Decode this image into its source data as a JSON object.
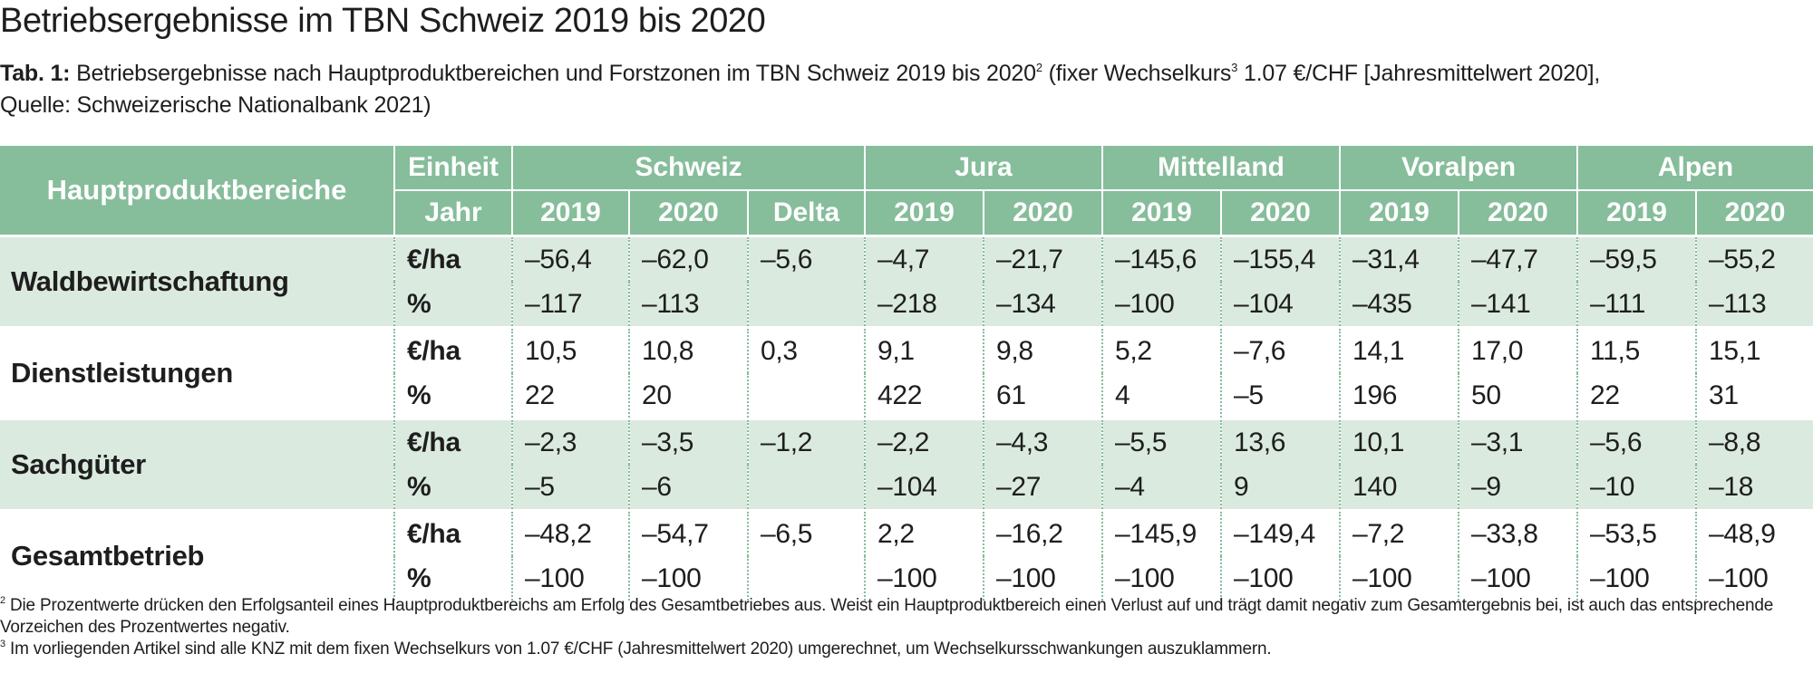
{
  "title": "Betriebsergebnisse im TBN Schweiz 2019 bis 2020",
  "caption": {
    "label": "Tab. 1:",
    "text_part1": "Betriebsergebnisse nach Hauptproduktbereichen und Forstzonen im TBN Schweiz 2019 bis 2020",
    "sup1": "2",
    "text_part2": "(fixer Wechselkurs",
    "sup2": "3",
    "text_part3": "1.07 €/CHF [Jahresmittelwert 2020],",
    "line2": "Quelle: Schweizerische Nationalbank 2021)"
  },
  "table": {
    "header": {
      "hauptproduktbereiche": "Hauptproduktbereiche",
      "einheit": "Einheit",
      "jahr": "Jahr",
      "zones": [
        "Schweiz",
        "Jura",
        "Mittelland",
        "Voralpen",
        "Alpen"
      ],
      "years": [
        "2019",
        "2020",
        "Delta",
        "2019",
        "2020",
        "2019",
        "2020",
        "2019",
        "2020",
        "2019",
        "2020"
      ]
    },
    "groups": [
      {
        "label": "Waldbewirtschaftung",
        "rows": [
          {
            "unit": "€/ha",
            "values": [
              "–56,4",
              "–62,0",
              "–5,6",
              "–4,7",
              "–21,7",
              "–145,6",
              "–155,4",
              "–31,4",
              "–47,7",
              "–59,5",
              "–55,2"
            ]
          },
          {
            "unit": "%",
            "values": [
              "–117",
              "–113",
              "",
              "–218",
              "–134",
              "–100",
              "–104",
              "–435",
              "–141",
              "–111",
              "–113"
            ]
          }
        ]
      },
      {
        "label": "Dienstleistungen",
        "rows": [
          {
            "unit": "€/ha",
            "values": [
              "10,5",
              "10,8",
              "0,3",
              "9,1",
              "9,8",
              "5,2",
              "–7,6",
              "14,1",
              "17,0",
              "11,5",
              "15,1"
            ]
          },
          {
            "unit": "%",
            "values": [
              "22",
              "20",
              "",
              "422",
              "61",
              "4",
              "–5",
              "196",
              "50",
              "22",
              "31"
            ]
          }
        ]
      },
      {
        "label": "Sachgüter",
        "rows": [
          {
            "unit": "€/ha",
            "values": [
              "–2,3",
              "–3,5",
              "–1,2",
              "–2,2",
              "–4,3",
              "–5,5",
              "13,6",
              "10,1",
              "–3,1",
              "–5,6",
              "–8,8"
            ]
          },
          {
            "unit": "%",
            "values": [
              "–5",
              "–6",
              "",
              "–104",
              "–27",
              "–4",
              "9",
              "140",
              "–9",
              "–10",
              "–18"
            ]
          }
        ]
      },
      {
        "label": "Gesamtbetrieb",
        "rows": [
          {
            "unit": "€/ha",
            "values": [
              "–48,2",
              "–54,7",
              "–6,5",
              "2,2",
              "–16,2",
              "–145,9",
              "–149,4",
              "–7,2",
              "–33,8",
              "–53,5",
              "–48,9"
            ]
          },
          {
            "unit": "%",
            "values": [
              "–100",
              "–100",
              "",
              "–100",
              "–100",
              "–100",
              "–100",
              "–100",
              "–100",
              "–100",
              "–100"
            ]
          }
        ]
      }
    ]
  },
  "footnotes": [
    {
      "num": "2",
      "text": "Die Prozentwerte drücken den Erfolgsanteil eines Hauptproduktbereichs am Erfolg des Gesamtbetriebes aus. Weist ein Hauptproduktbereich einen Verlust auf und trägt damit negativ zum Gesamtergebnis bei, ist auch das entsprechende Vorzeichen des Prozentwertes negativ."
    },
    {
      "num": "3",
      "text": "Im vorliegenden Artikel sind alle KNZ mit dem fixen Wechselkurs von 1.07 €/CHF (Jahresmittelwert 2020) umgerechnet, um Wechselkursschwankungen auszuklammern."
    }
  ],
  "colors": {
    "header_green": "#86bd9b",
    "row_light_green": "#dbeadf",
    "row_white": "#ffffff"
  }
}
